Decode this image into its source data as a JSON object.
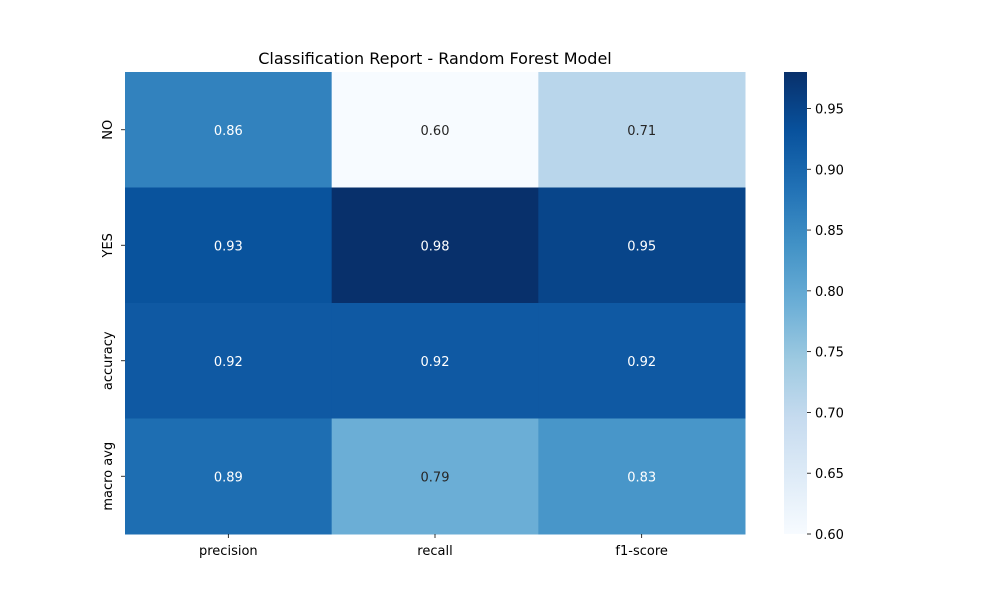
{
  "chart_data": {
    "type": "heatmap",
    "title": "Classification Report - Random Forest Model",
    "xlabel": "",
    "ylabel": "",
    "x_categories": [
      "precision",
      "recall",
      "f1-score"
    ],
    "y_categories": [
      "NO",
      "YES",
      "accuracy",
      "macro avg"
    ],
    "values": [
      [
        0.86,
        0.6,
        0.71
      ],
      [
        0.93,
        0.98,
        0.95
      ],
      [
        0.92,
        0.92,
        0.92
      ],
      [
        0.89,
        0.79,
        0.83
      ]
    ],
    "cell_labels": [
      [
        "0.86",
        "0.60",
        "0.71"
      ],
      [
        "0.93",
        "0.98",
        "0.95"
      ],
      [
        "0.92",
        "0.92",
        "0.92"
      ],
      [
        "0.89",
        "0.79",
        "0.83"
      ]
    ],
    "colormap": "Blues",
    "colorbar": {
      "range": [
        0.6,
        0.98
      ],
      "ticks": [
        0.6,
        0.65,
        0.7,
        0.75,
        0.8,
        0.85,
        0.9,
        0.95
      ],
      "tick_labels": [
        "0.60",
        "0.65",
        "0.70",
        "0.75",
        "0.80",
        "0.85",
        "0.90",
        "0.95"
      ]
    }
  }
}
